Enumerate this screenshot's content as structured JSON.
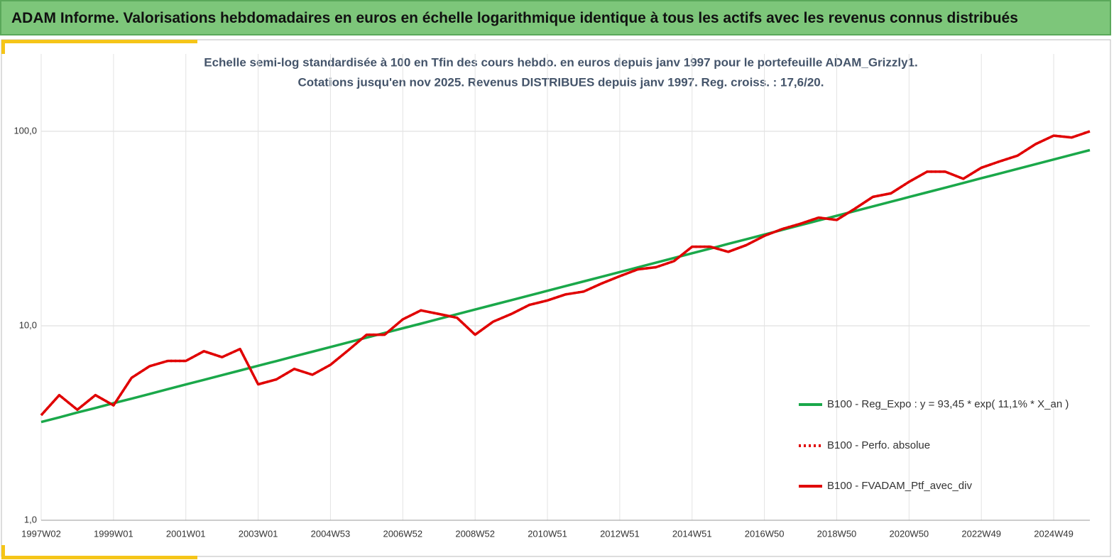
{
  "header": {
    "title": "ADAM Informe. Valorisations hebdomadaires en euros en échelle logarithmique identique à tous les actifs avec les revenus connus distribués"
  },
  "chart_data": {
    "type": "line",
    "title": "Echelle semi-log standardisée à 100 en Tfin des cours hebdo.  en euros depuis janv 1997 pour le portefeuille ADAM_Grizzly1.",
    "subtitle": "Cotations jusqu'en nov 2025. Revenus DISTRIBUES depuis janv 1997. Reg. croiss. : 17,6/20.",
    "log_scale": true,
    "grid": true,
    "legend": "right",
    "ylim": [
      1,
      250
    ],
    "yticks": [
      {
        "value": 1,
        "label": "1,0"
      },
      {
        "value": 10,
        "label": "10,0"
      },
      {
        "value": 100,
        "label": "100,0"
      }
    ],
    "categories": [
      "1997W02",
      null,
      null,
      null,
      "1999W01",
      null,
      null,
      null,
      "2001W01",
      null,
      null,
      null,
      "2003W01",
      null,
      null,
      null,
      "2004W53",
      null,
      null,
      null,
      "2006W52",
      null,
      null,
      null,
      "2008W52",
      null,
      null,
      null,
      "2010W51",
      null,
      null,
      null,
      "2012W51",
      null,
      null,
      null,
      "2014W51",
      null,
      null,
      null,
      "2016W50",
      null,
      null,
      null,
      "2018W50",
      null,
      null,
      null,
      "2020W50",
      null,
      null,
      null,
      "2022W49",
      null,
      null,
      null,
      "2024W49",
      null,
      null
    ],
    "series": [
      {
        "name": "B100 - Reg_Expo : y = 93,45 * exp( 11,1% *  X_an )",
        "color": "#1aa84a",
        "style": "solid",
        "values": [
          3.2,
          3.38,
          3.58,
          3.78,
          4.0,
          4.22,
          4.46,
          4.72,
          4.99,
          5.27,
          5.57,
          5.89,
          6.23,
          6.58,
          6.96,
          7.36,
          7.78,
          8.22,
          8.69,
          9.19,
          9.71,
          10.26,
          10.85,
          11.47,
          12.12,
          12.82,
          13.55,
          14.32,
          15.14,
          16.0,
          16.91,
          17.88,
          18.9,
          19.98,
          21.12,
          22.32,
          23.6,
          24.94,
          26.37,
          27.87,
          29.46,
          31.15,
          32.92,
          34.8,
          36.79,
          38.89,
          41.11,
          43.46,
          45.94,
          48.56,
          51.34,
          54.27,
          57.37,
          60.64,
          64.1,
          67.76,
          71.63,
          75.72,
          80.05
        ]
      },
      {
        "name": "B100 - Perfo. absolue",
        "color": "#e00000",
        "style": "dotted",
        "values": [
          3.47,
          4.4,
          3.7,
          4.4,
          3.9,
          5.4,
          6.2,
          6.6,
          6.6,
          7.4,
          6.9,
          7.6,
          5.0,
          5.3,
          6.0,
          5.6,
          6.3,
          7.5,
          9.0,
          9.0,
          10.8,
          12.0,
          11.5,
          11.0,
          9.0,
          10.5,
          11.5,
          12.8,
          13.5,
          14.5,
          15.0,
          16.5,
          18.0,
          19.5,
          20.0,
          21.5,
          25.5,
          25.5,
          24.0,
          26.0,
          29.0,
          31.5,
          33.5,
          36.0,
          35.0,
          40.0,
          46.0,
          48.0,
          55.0,
          62.0,
          62.0,
          57.0,
          65.0,
          70.0,
          75.0,
          86.0,
          95.0,
          93.0,
          100.0
        ]
      },
      {
        "name": "B100 - FVADAM_Ptf_avec_div",
        "color": "#e00000",
        "style": "solid",
        "values": [
          3.47,
          4.4,
          3.7,
          4.4,
          3.9,
          5.4,
          6.2,
          6.6,
          6.6,
          7.4,
          6.9,
          7.6,
          5.0,
          5.3,
          6.0,
          5.6,
          6.3,
          7.5,
          9.0,
          9.0,
          10.8,
          12.0,
          11.5,
          11.0,
          9.0,
          10.5,
          11.5,
          12.8,
          13.5,
          14.5,
          15.0,
          16.5,
          18.0,
          19.5,
          20.0,
          21.5,
          25.5,
          25.5,
          24.0,
          26.0,
          29.0,
          31.5,
          33.5,
          36.0,
          35.0,
          40.0,
          46.0,
          48.0,
          55.0,
          62.0,
          62.0,
          57.0,
          65.0,
          70.0,
          75.0,
          86.0,
          95.0,
          93.0,
          100.0
        ]
      }
    ]
  }
}
